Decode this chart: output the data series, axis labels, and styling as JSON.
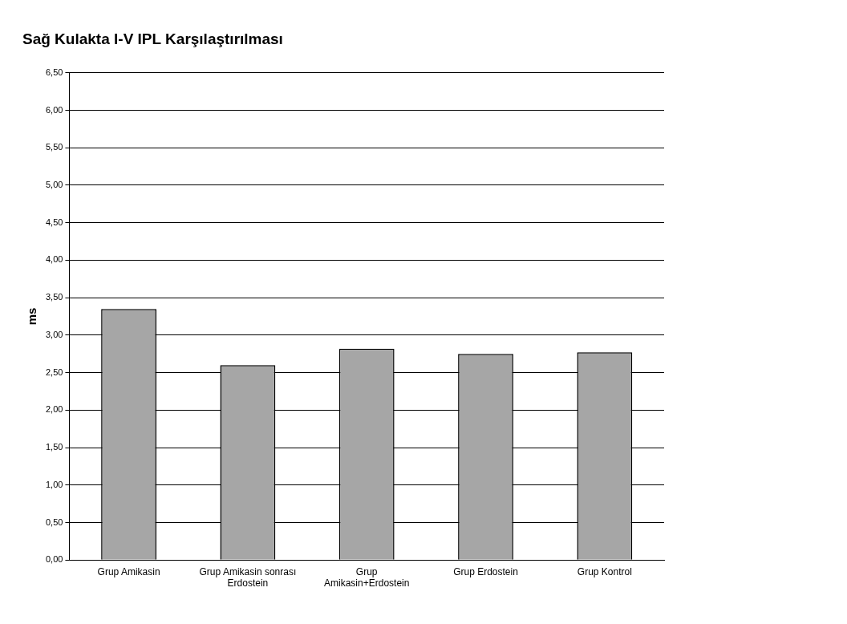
{
  "chart_data": {
    "type": "bar",
    "title": "Sağ Kulakta I-V IPL Karşılaştırılması",
    "ylabel": "ms",
    "categories": [
      "Grup Amikasin",
      "Grup Amikasin sonrası Erdostein",
      "Grup Amikasin+Erdostein",
      "Grup Erdostein",
      "Grup Kontrol"
    ],
    "values": [
      3.35,
      2.6,
      2.82,
      2.75,
      2.77
    ],
    "color": "#a6a6a6",
    "ylim": [
      0,
      6.5
    ],
    "yticks": [
      {
        "value": 0,
        "label": "0,00"
      },
      {
        "value": 0.5,
        "label": "0,50"
      },
      {
        "value": 1,
        "label": "1,00"
      },
      {
        "value": 1.5,
        "label": "1,50"
      },
      {
        "value": 2,
        "label": "2,00"
      },
      {
        "value": 2.5,
        "label": "2,50"
      },
      {
        "value": 3,
        "label": "3,00"
      },
      {
        "value": 3.5,
        "label": "3,50"
      },
      {
        "value": 4,
        "label": "4,00"
      },
      {
        "value": 4.5,
        "label": "4,50"
      },
      {
        "value": 5,
        "label": "5,00"
      },
      {
        "value": 5.5,
        "label": "5,50"
      },
      {
        "value": 6,
        "label": "6,00"
      },
      {
        "value": 6.5,
        "label": "6,50"
      }
    ],
    "grid": "y",
    "legend": false
  }
}
